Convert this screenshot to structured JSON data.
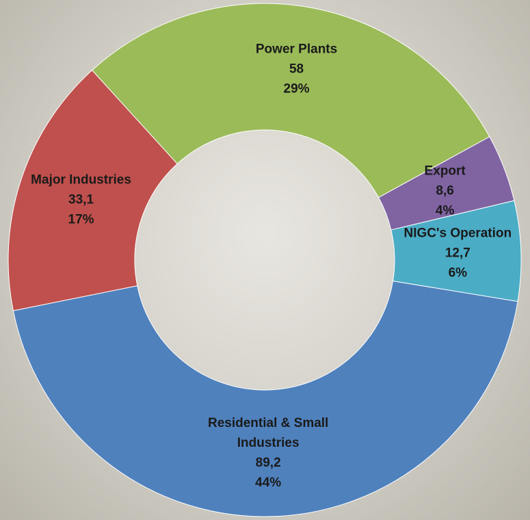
{
  "chart_data": {
    "type": "donut",
    "categories": [
      "Power Plants",
      "Export",
      "NIGC's Operation",
      "Residential & Small Industries",
      "Major Industries"
    ],
    "values": [
      58,
      8.6,
      12.7,
      89.2,
      33.1
    ],
    "value_labels": [
      "58",
      "8,6",
      "12,7",
      "89,2",
      "33,1"
    ],
    "percentages": [
      {
        "value": 29,
        "label": "29%"
      },
      {
        "value": 4,
        "label": "4%"
      },
      {
        "value": 6,
        "label": "6%"
      },
      {
        "value": 44,
        "label": "44%"
      },
      {
        "value": 17,
        "label": "17%"
      }
    ],
    "colors": [
      "#9bbb59",
      "#8064a2",
      "#4bacc6",
      "#4f81bd",
      "#c0504d"
    ]
  }
}
